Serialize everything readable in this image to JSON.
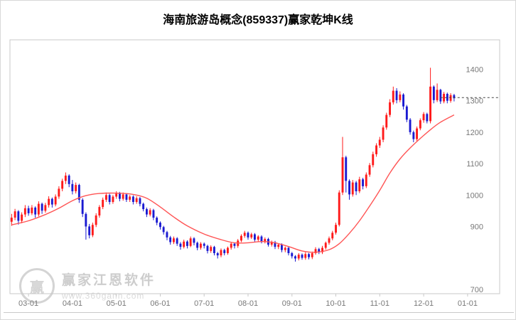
{
  "title": "海南旅游岛概念(859337)赢家乾坤K线",
  "watermark": {
    "brand": "赢家江恩软件",
    "url": "www.360gann.com",
    "logo_char": "赢"
  },
  "colors": {
    "up": "#ff1a1a",
    "down": "#1a1ad1",
    "ma": "#ff5555",
    "grid": "#c9c9c9",
    "axis_text": "#787878",
    "price_line": "#444444"
  },
  "chart_data": {
    "type": "candlestick",
    "title": "海南旅游岛概念(859337)赢家乾坤K线",
    "ylim": [
      686,
      1494
    ],
    "y_ticks": [
      700,
      900,
      1000,
      1100,
      1200,
      1300,
      1400
    ],
    "total_slots": 145,
    "x_labels": [
      {
        "label": "03-01",
        "slot": 5
      },
      {
        "label": "04-01",
        "slot": 18
      },
      {
        "label": "05-01",
        "slot": 31
      },
      {
        "label": "06-01",
        "slot": 44
      },
      {
        "label": "07-01",
        "slot": 57
      },
      {
        "label": "08-01",
        "slot": 70
      },
      {
        "label": "09-01",
        "slot": 83
      },
      {
        "label": "10-01",
        "slot": 96
      },
      {
        "label": "11-01",
        "slot": 109
      },
      {
        "label": "12-01",
        "slot": 122
      },
      {
        "label": "01-01",
        "slot": 135
      }
    ],
    "price_line": 1310,
    "ma_series": {
      "name": "MA",
      "points": [
        [
          0,
          905
        ],
        [
          5,
          918
        ],
        [
          10,
          938
        ],
        [
          14,
          958
        ],
        [
          18,
          982
        ],
        [
          22,
          998
        ],
        [
          26,
          1005
        ],
        [
          31,
          1006
        ],
        [
          36,
          1002
        ],
        [
          40,
          990
        ],
        [
          44,
          962
        ],
        [
          48,
          930
        ],
        [
          52,
          902
        ],
        [
          57,
          876
        ],
        [
          62,
          858
        ],
        [
          66,
          848
        ],
        [
          70,
          848
        ],
        [
          74,
          852
        ],
        [
          78,
          848
        ],
        [
          82,
          836
        ],
        [
          86,
          822
        ],
        [
          90,
          818
        ],
        [
          94,
          826
        ],
        [
          97,
          845
        ],
        [
          100,
          878
        ],
        [
          103,
          918
        ],
        [
          106,
          965
        ],
        [
          109,
          1015
        ],
        [
          112,
          1070
        ],
        [
          115,
          1115
        ],
        [
          118,
          1150
        ],
        [
          121,
          1180
        ],
        [
          124,
          1208
        ],
        [
          127,
          1232
        ],
        [
          131,
          1255
        ]
      ]
    },
    "candles": [
      [
        915,
        940,
        902,
        928
      ],
      [
        928,
        956,
        920,
        948
      ],
      [
        948,
        952,
        906,
        918
      ],
      [
        918,
        945,
        910,
        938
      ],
      [
        938,
        968,
        930,
        958
      ],
      [
        958,
        966,
        934,
        942
      ],
      [
        942,
        968,
        936,
        960
      ],
      [
        960,
        964,
        928,
        938
      ],
      [
        938,
        980,
        932,
        972
      ],
      [
        972,
        976,
        940,
        950
      ],
      [
        950,
        975,
        944,
        968
      ],
      [
        968,
        996,
        960,
        988
      ],
      [
        988,
        992,
        960,
        970
      ],
      [
        970,
        1002,
        964,
        995
      ],
      [
        995,
        1028,
        988,
        1020
      ],
      [
        1020,
        1052,
        1012,
        1045
      ],
      [
        1045,
        1072,
        1035,
        1062
      ],
      [
        1062,
        1066,
        1025,
        1035
      ],
      [
        1035,
        1048,
        1002,
        1012
      ],
      [
        1012,
        1040,
        1005,
        1032
      ],
      [
        1032,
        1036,
        975,
        985
      ],
      [
        985,
        990,
        930,
        940
      ],
      [
        940,
        945,
        858,
        900
      ],
      [
        900,
        908,
        862,
        872
      ],
      [
        872,
        912,
        866,
        905
      ],
      [
        905,
        942,
        898,
        935
      ],
      [
        935,
        968,
        928,
        962
      ],
      [
        962,
        992,
        955,
        985
      ],
      [
        985,
        1008,
        978,
        1000
      ],
      [
        1000,
        1004,
        970,
        978
      ],
      [
        978,
        1000,
        972,
        995
      ],
      [
        995,
        1012,
        988,
        1005
      ],
      [
        1005,
        1010,
        980,
        988
      ],
      [
        988,
        1008,
        982,
        1002
      ],
      [
        1002,
        1006,
        978,
        985
      ],
      [
        985,
        1000,
        978,
        995
      ],
      [
        995,
        999,
        970,
        978
      ],
      [
        978,
        996,
        972,
        990
      ],
      [
        990,
        994,
        964,
        972
      ],
      [
        972,
        976,
        948,
        955
      ],
      [
        955,
        960,
        930,
        938
      ],
      [
        938,
        958,
        932,
        952
      ],
      [
        952,
        956,
        920,
        928
      ],
      [
        928,
        932,
        904,
        912
      ],
      [
        912,
        916,
        890,
        898
      ],
      [
        898,
        902,
        874,
        882
      ],
      [
        882,
        886,
        856,
        865
      ],
      [
        865,
        870,
        842,
        850
      ],
      [
        850,
        868,
        844,
        862
      ],
      [
        862,
        866,
        838,
        845
      ],
      [
        845,
        850,
        826,
        835
      ],
      [
        835,
        858,
        830,
        852
      ],
      [
        852,
        856,
        830,
        838
      ],
      [
        838,
        868,
        834,
        862
      ],
      [
        862,
        866,
        840,
        848
      ],
      [
        848,
        852,
        824,
        832
      ],
      [
        832,
        850,
        826,
        845
      ],
      [
        845,
        849,
        830,
        838
      ],
      [
        838,
        842,
        814,
        822
      ],
      [
        822,
        840,
        816,
        835
      ],
      [
        835,
        838,
        808,
        815
      ],
      [
        815,
        819,
        798,
        808
      ],
      [
        808,
        830,
        802,
        825
      ],
      [
        825,
        829,
        808,
        815
      ],
      [
        815,
        836,
        810,
        832
      ],
      [
        832,
        850,
        826,
        845
      ],
      [
        845,
        849,
        830,
        838
      ],
      [
        838,
        860,
        832,
        855
      ],
      [
        855,
        875,
        850,
        870
      ],
      [
        870,
        886,
        864,
        880
      ],
      [
        880,
        884,
        858,
        865
      ],
      [
        865,
        880,
        860,
        875
      ],
      [
        875,
        879,
        852,
        858
      ],
      [
        858,
        872,
        852,
        868
      ],
      [
        868,
        872,
        846,
        852
      ],
      [
        852,
        865,
        846,
        860
      ],
      [
        860,
        864,
        836,
        842
      ],
      [
        842,
        855,
        836,
        850
      ],
      [
        850,
        854,
        828,
        835
      ],
      [
        835,
        846,
        828,
        842
      ],
      [
        842,
        846,
        818,
        825
      ],
      [
        825,
        836,
        818,
        832
      ],
      [
        832,
        836,
        808,
        815
      ],
      [
        815,
        819,
        798,
        805
      ],
      [
        805,
        809,
        788,
        798
      ],
      [
        798,
        815,
        792,
        810
      ],
      [
        810,
        814,
        794,
        800
      ],
      [
        800,
        818,
        794,
        812
      ],
      [
        812,
        816,
        795,
        802
      ],
      [
        802,
        820,
        796,
        815
      ],
      [
        815,
        834,
        810,
        828
      ],
      [
        828,
        832,
        812,
        818
      ],
      [
        818,
        838,
        812,
        832
      ],
      [
        832,
        852,
        826,
        848
      ],
      [
        848,
        868,
        842,
        862
      ],
      [
        862,
        886,
        856,
        880
      ],
      [
        880,
        912,
        874,
        905
      ],
      [
        905,
        1015,
        900,
        1008
      ],
      [
        1008,
        1185,
        1000,
        1120
      ],
      [
        1120,
        1125,
        1008,
        1045
      ],
      [
        1045,
        1050,
        985,
        1002
      ],
      [
        1002,
        1048,
        995,
        1040
      ],
      [
        1040,
        1045,
        1000,
        1012
      ],
      [
        1012,
        1058,
        1006,
        1050
      ],
      [
        1050,
        1055,
        1018,
        1028
      ],
      [
        1028,
        1072,
        1022,
        1065
      ],
      [
        1065,
        1102,
        1058,
        1095
      ],
      [
        1095,
        1138,
        1088,
        1130
      ],
      [
        1130,
        1165,
        1122,
        1158
      ],
      [
        1158,
        1185,
        1150,
        1176
      ],
      [
        1176,
        1222,
        1168,
        1215
      ],
      [
        1215,
        1262,
        1208,
        1255
      ],
      [
        1255,
        1305,
        1248,
        1295
      ],
      [
        1295,
        1345,
        1288,
        1332
      ],
      [
        1332,
        1340,
        1292,
        1302
      ],
      [
        1302,
        1330,
        1295,
        1320
      ],
      [
        1320,
        1324,
        1272,
        1282
      ],
      [
        1282,
        1287,
        1232,
        1240
      ],
      [
        1240,
        1245,
        1192,
        1200
      ],
      [
        1200,
        1205,
        1168,
        1178
      ],
      [
        1178,
        1218,
        1172,
        1212
      ],
      [
        1212,
        1244,
        1206,
        1238
      ],
      [
        1238,
        1264,
        1230,
        1258
      ],
      [
        1258,
        1262,
        1228,
        1235
      ],
      [
        1235,
        1405,
        1228,
        1345
      ],
      [
        1345,
        1349,
        1292,
        1302
      ],
      [
        1302,
        1355,
        1296,
        1335
      ],
      [
        1335,
        1338,
        1290,
        1298
      ],
      [
        1298,
        1328,
        1292,
        1322
      ],
      [
        1322,
        1326,
        1292,
        1300
      ],
      [
        1300,
        1324,
        1294,
        1318
      ],
      [
        1318,
        1322,
        1298,
        1308
      ]
    ]
  }
}
